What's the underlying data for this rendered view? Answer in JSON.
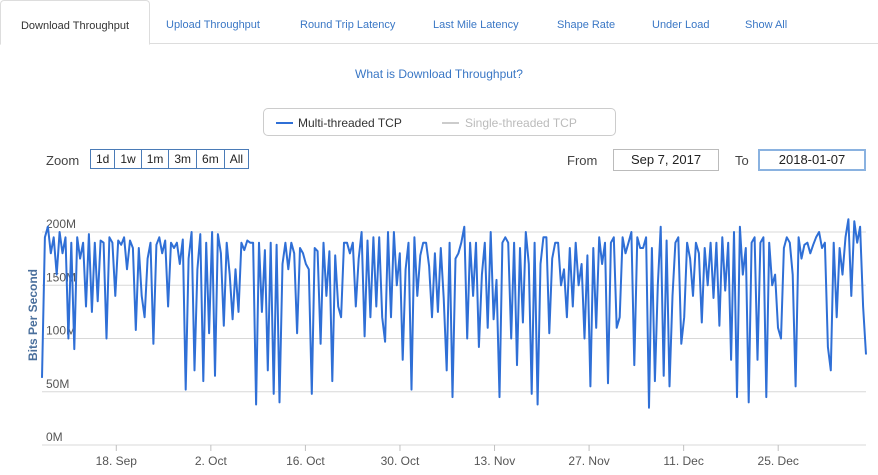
{
  "tabs": [
    {
      "label": "Download Throughput",
      "active": true
    },
    {
      "label": "Upload Throughput",
      "active": false
    },
    {
      "label": "Round Trip Latency",
      "active": false
    },
    {
      "label": "Last Mile Latency",
      "active": false
    },
    {
      "label": "Shape Rate",
      "active": false
    },
    {
      "label": "Under Load",
      "active": false
    },
    {
      "label": "Show All",
      "active": false
    }
  ],
  "info_link": "What is Download Throughput?",
  "legend": [
    {
      "label": "Multi-threaded TCP",
      "color": "#2f6fd6",
      "enabled": true
    },
    {
      "label": "Single-threaded TCP",
      "color": "#cccccc",
      "enabled": false
    }
  ],
  "range_selector": {
    "zoom_label": "Zoom",
    "buttons": [
      "1d",
      "1w",
      "1m",
      "3m",
      "6m",
      "All"
    ],
    "from_label": "From",
    "from_value": "Sep 7, 2017",
    "to_label": "To",
    "to_value": "2018-01-07"
  },
  "colors": {
    "accent": "#3a77c5",
    "series": "#2f6fd6",
    "grid": "#d8d8d8"
  },
  "chart_data": {
    "type": "line",
    "ylabel": "Bits Per Second",
    "ylim": [
      0,
      215000000
    ],
    "yticks": [
      0,
      50000000,
      100000000,
      150000000,
      200000000
    ],
    "ytick_labels": [
      "0M",
      "50M",
      "100M",
      "150M",
      "200M"
    ],
    "xlim": [
      "2017-09-07",
      "2018-01-07"
    ],
    "xticks": [
      "2017-09-18",
      "2017-10-02",
      "2017-10-16",
      "2017-10-30",
      "2017-11-13",
      "2017-11-27",
      "2017-12-11",
      "2017-12-25"
    ],
    "xtick_labels": [
      "18. Sep",
      "2. Oct",
      "16. Oct",
      "30. Oct",
      "13. Nov",
      "27. Nov",
      "11. Dec",
      "25. Dec"
    ],
    "grid": true,
    "legend_position": "top-center",
    "series": [
      {
        "name": "Multi-threaded TCP",
        "values": [
          63,
          195,
          205,
          180,
          195,
          160,
          200,
          180,
          195,
          100,
          190,
          90,
          195,
          175,
          190,
          130,
          198,
          125,
          190,
          135,
          192,
          190,
          100,
          195,
          190,
          140,
          192,
          188,
          195,
          165,
          192,
          185,
          108,
          185,
          140,
          120,
          175,
          190,
          95,
          188,
          195,
          180,
          192,
          130,
          190,
          185,
          190,
          170,
          193,
          52,
          175,
          200,
          70,
          165,
          198,
          60,
          190,
          105,
          200,
          65,
          198,
          180,
          112,
          190,
          160,
          118,
          165,
          125,
          190,
          183,
          192,
          190,
          190,
          38,
          190,
          125,
          183,
          70,
          190,
          48,
          188,
          40,
          170,
          190,
          165,
          190,
          180,
          105,
          185,
          180,
          170,
          165,
          48,
          185,
          182,
          95,
          190,
          140,
          182,
          60,
          178,
          130,
          120,
          190,
          190,
          180,
          190,
          130,
          175,
          200,
          102,
          192,
          120,
          195,
          130,
          195,
          120,
          97,
          200,
          120,
          200,
          150,
          180,
          80,
          165,
          190,
          52,
          195,
          140,
          178,
          190,
          190,
          168,
          120,
          180,
          125,
          185,
          138,
          70,
          190,
          45,
          175,
          180,
          190,
          205,
          100,
          190,
          140,
          190,
          92,
          160,
          190,
          110,
          200,
          118,
          155,
          45,
          190,
          195,
          190,
          100,
          190,
          75,
          185,
          115,
          200,
          170,
          48,
          190,
          38,
          170,
          195,
          195,
          105,
          175,
          190,
          190,
          150,
          165,
          120,
          185,
          130,
          190,
          150,
          170,
          100,
          178,
          55,
          185,
          110,
          195,
          170,
          190,
          58,
          190,
          195,
          110,
          120,
          195,
          180,
          190,
          200,
          75,
          195,
          185,
          185,
          195,
          35,
          185,
          60,
          150,
          205,
          65,
          192,
          55,
          140,
          190,
          195,
          95,
          120,
          190,
          175,
          140,
          190,
          180,
          115,
          185,
          150,
          190,
          138,
          190,
          112,
          195,
          145,
          190,
          80,
          200,
          45,
          205,
          160,
          185,
          40,
          190,
          195,
          80,
          190,
          195,
          45,
          190,
          150,
          160,
          110,
          100,
          185,
          195,
          190,
          160,
          55,
          195,
          175,
          188,
          190,
          180,
          188,
          195,
          200,
          185,
          190,
          92,
          70,
          190,
          120,
          185,
          160,
          195,
          212,
          140,
          210,
          190,
          205,
          130,
          85
        ]
      }
    ]
  }
}
